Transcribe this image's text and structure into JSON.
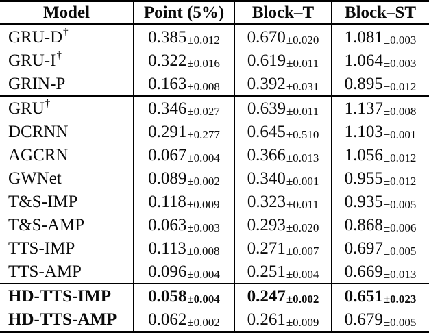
{
  "table": {
    "columns": [
      "Model",
      "Point (5%)",
      "Block–T",
      "Block–ST"
    ],
    "groups": [
      {
        "rows": [
          {
            "model": "GRU-D",
            "dagger": true,
            "bold_model": false,
            "bold_values": false,
            "values": [
              {
                "mean": "0.385",
                "std": "±0.012"
              },
              {
                "mean": "0.670",
                "std": "±0.020"
              },
              {
                "mean": "1.081",
                "std": "±0.003"
              }
            ]
          },
          {
            "model": "GRU-I",
            "dagger": true,
            "bold_model": false,
            "bold_values": false,
            "values": [
              {
                "mean": "0.322",
                "std": "±0.016"
              },
              {
                "mean": "0.619",
                "std": "±0.011"
              },
              {
                "mean": "1.064",
                "std": "±0.003"
              }
            ]
          },
          {
            "model": "GRIN-P",
            "dagger": false,
            "bold_model": false,
            "bold_values": false,
            "values": [
              {
                "mean": "0.163",
                "std": "±0.008"
              },
              {
                "mean": "0.392",
                "std": "±0.031"
              },
              {
                "mean": "0.895",
                "std": "±0.012"
              }
            ]
          }
        ]
      },
      {
        "rows": [
          {
            "model": "GRU",
            "dagger": true,
            "bold_model": false,
            "bold_values": false,
            "values": [
              {
                "mean": "0.346",
                "std": "±0.027"
              },
              {
                "mean": "0.639",
                "std": "±0.011"
              },
              {
                "mean": "1.137",
                "std": "±0.008"
              }
            ]
          },
          {
            "model": "DCRNN",
            "dagger": false,
            "bold_model": false,
            "bold_values": false,
            "values": [
              {
                "mean": "0.291",
                "std": "±0.277"
              },
              {
                "mean": "0.645",
                "std": "±0.510"
              },
              {
                "mean": "1.103",
                "std": "±0.001"
              }
            ]
          },
          {
            "model": "AGCRN",
            "dagger": false,
            "bold_model": false,
            "bold_values": false,
            "values": [
              {
                "mean": "0.067",
                "std": "±0.004"
              },
              {
                "mean": "0.366",
                "std": "±0.013"
              },
              {
                "mean": "1.056",
                "std": "±0.012"
              }
            ]
          },
          {
            "model": "GWNet",
            "dagger": false,
            "bold_model": false,
            "bold_values": false,
            "values": [
              {
                "mean": "0.089",
                "std": "±0.002"
              },
              {
                "mean": "0.340",
                "std": "±0.001"
              },
              {
                "mean": "0.955",
                "std": "±0.012"
              }
            ]
          },
          {
            "model": "T&S-IMP",
            "dagger": false,
            "bold_model": false,
            "bold_values": false,
            "values": [
              {
                "mean": "0.118",
                "std": "±0.009"
              },
              {
                "mean": "0.323",
                "std": "±0.011"
              },
              {
                "mean": "0.935",
                "std": "±0.005"
              }
            ]
          },
          {
            "model": "T&S-AMP",
            "dagger": false,
            "bold_model": false,
            "bold_values": false,
            "values": [
              {
                "mean": "0.063",
                "std": "±0.003"
              },
              {
                "mean": "0.293",
                "std": "±0.020"
              },
              {
                "mean": "0.868",
                "std": "±0.006"
              }
            ]
          },
          {
            "model": "TTS-IMP",
            "dagger": false,
            "bold_model": false,
            "bold_values": false,
            "values": [
              {
                "mean": "0.113",
                "std": "±0.008"
              },
              {
                "mean": "0.271",
                "std": "±0.007"
              },
              {
                "mean": "0.697",
                "std": "±0.005"
              }
            ]
          },
          {
            "model": "TTS-AMP",
            "dagger": false,
            "bold_model": false,
            "bold_values": false,
            "values": [
              {
                "mean": "0.096",
                "std": "±0.004"
              },
              {
                "mean": "0.251",
                "std": "±0.004"
              },
              {
                "mean": "0.669",
                "std": "±0.013"
              }
            ]
          }
        ]
      },
      {
        "rows": [
          {
            "model": "HD-TTS-IMP",
            "dagger": false,
            "bold_model": true,
            "bold_values": true,
            "values": [
              {
                "mean": "0.058",
                "std": "±0.004"
              },
              {
                "mean": "0.247",
                "std": "±0.002"
              },
              {
                "mean": "0.651",
                "std": "±0.023"
              }
            ]
          },
          {
            "model": "HD-TTS-AMP",
            "dagger": false,
            "bold_model": true,
            "bold_values": false,
            "values": [
              {
                "mean": "0.062",
                "std": "±0.002"
              },
              {
                "mean": "0.261",
                "std": "±0.009"
              },
              {
                "mean": "0.679",
                "std": "±0.005"
              }
            ]
          }
        ]
      }
    ]
  }
}
